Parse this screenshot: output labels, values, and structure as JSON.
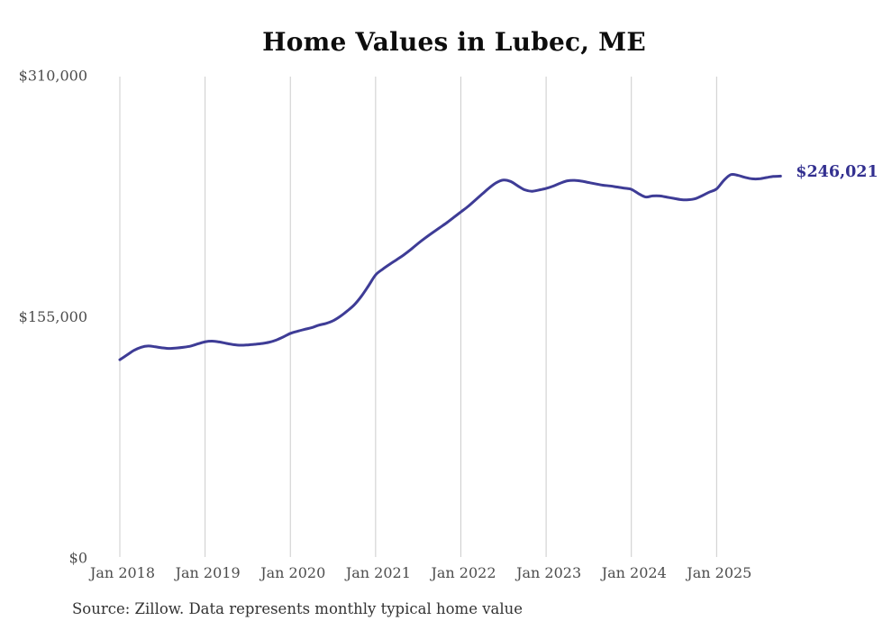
{
  "page": {
    "source_note": "Source: Zillow. Data represents monthly typical home value"
  },
  "chart_data": {
    "type": "line",
    "title": "Home Values in Lubec, ME",
    "series_name": "Monthly typical home value",
    "x_unit": "month",
    "x_start": "2018-01",
    "x_end": "2025-10",
    "x_tick_labels": [
      "Jan 2018",
      "Jan 2019",
      "Jan 2020",
      "Jan 2021",
      "Jan 2022",
      "Jan 2023",
      "Jan 2024",
      "Jan 2025"
    ],
    "y_tick_labels": [
      "$0",
      "$155,000",
      "$310,000"
    ],
    "y_tick_values": [
      0,
      155000,
      310000
    ],
    "ylim": [
      0,
      310000
    ],
    "grid": "vertical-only",
    "legend": "none",
    "line_color": "#3e3c96",
    "grid_color": "#cccccc",
    "tick_label_color": "#4d4d4d",
    "annotation": {
      "text": "$246,021",
      "value": 246021,
      "color": "#333090"
    },
    "values": [
      128000,
      131000,
      134000,
      136000,
      136800,
      136300,
      135600,
      135200,
      135500,
      136000,
      136800,
      138200,
      139500,
      139900,
      139400,
      138500,
      137700,
      137300,
      137500,
      137900,
      138400,
      139200,
      140600,
      142600,
      144900,
      146300,
      147500,
      148600,
      150200,
      151300,
      153000,
      155800,
      159300,
      163300,
      168800,
      175500,
      182500,
      186200,
      189400,
      192400,
      195500,
      199000,
      202800,
      206300,
      209600,
      212800,
      216000,
      219500,
      223000,
      226500,
      230500,
      234500,
      238500,
      241800,
      243500,
      242600,
      239800,
      237200,
      236300,
      237100,
      238100,
      239600,
      241500,
      243000,
      243300,
      242800,
      241900,
      241000,
      240200,
      239700,
      239000,
      238300,
      237500,
      234800,
      232600,
      233300,
      233300,
      232500,
      231700,
      230900,
      230800,
      231500,
      233500,
      235800,
      237800,
      243200,
      247000,
      246500,
      245200,
      244300,
      244300,
      245100,
      245800,
      246021
    ]
  }
}
